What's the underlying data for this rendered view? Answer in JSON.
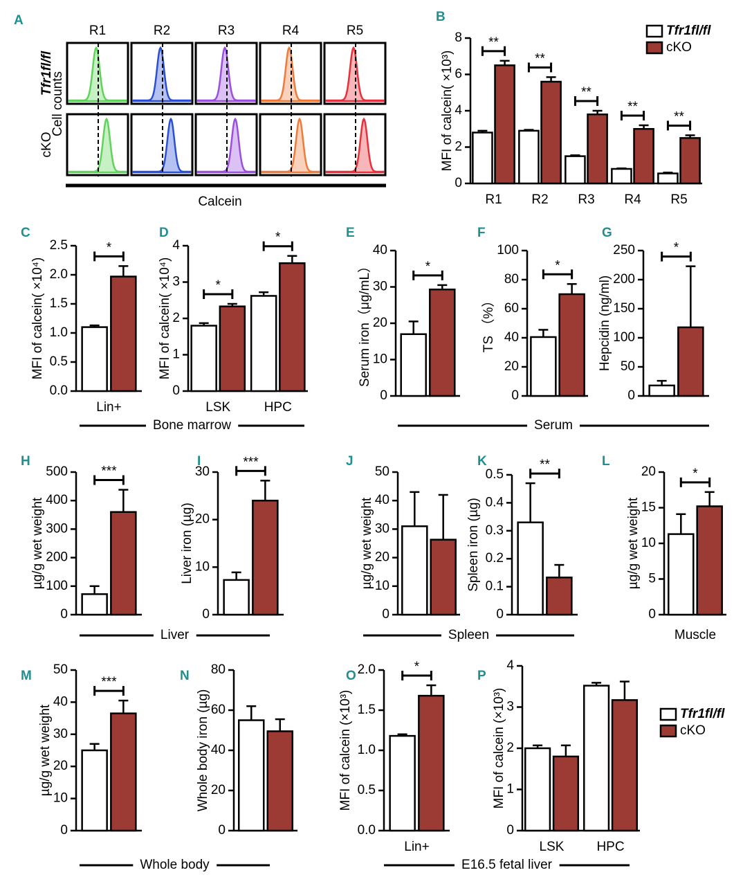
{
  "chart_data": [
    {
      "type": "histogram-grid",
      "letter": "A",
      "columns": [
        "R1",
        "R2",
        "R3",
        "R4",
        "R5"
      ],
      "rows": [
        "Tfr1fl/fl",
        "cKO"
      ],
      "row_colors": [
        "#000000",
        "#9b3b33"
      ],
      "ylabel": "Cell counts",
      "xlabel": "Calcein",
      "colors": [
        "#5fd35a",
        "#2a4fd6",
        "#9b4fe0",
        "#f07a3a",
        "#e8303a"
      ]
    },
    {
      "type": "bar",
      "letter": "B",
      "categories": [
        "R1",
        "R2",
        "R3",
        "R4",
        "R5"
      ],
      "ylabel": "MFI of calcein( ×10³)",
      "ylim": [
        0,
        8
      ],
      "yticks": [
        0,
        2,
        4,
        6,
        8
      ],
      "legend": "upper right",
      "series": [
        {
          "name": "Tfr1fl/fl",
          "color": "#ffffff",
          "values": [
            2.8,
            2.9,
            1.5,
            0.8,
            0.55
          ],
          "errors": [
            0.1,
            0.05,
            0.05,
            0.03,
            0.05
          ]
        },
        {
          "name": "cKO",
          "color": "#9b3b33",
          "values": [
            6.5,
            5.6,
            3.8,
            3.0,
            2.5
          ],
          "errors": [
            0.25,
            0.25,
            0.2,
            0.2,
            0.15
          ]
        }
      ],
      "significance": [
        "**",
        "**",
        "**",
        "**",
        "**"
      ]
    },
    {
      "type": "bar",
      "letter": "C",
      "categories": [
        "Lin+"
      ],
      "ylabel": "MFI of calcein( ×10⁴)",
      "ylim": [
        0,
        2.5
      ],
      "yticks": [
        {
          "value": 0,
          "label": "0.0"
        },
        0.5,
        {
          "value": 1,
          "label": "1.0"
        },
        1.5,
        {
          "value": 2,
          "label": "2.0"
        },
        2.5
      ],
      "series": [
        {
          "color": "#ffffff",
          "values": [
            1.1
          ],
          "errors": [
            0.03
          ]
        },
        {
          "color": "#9b3b33",
          "values": [
            1.97
          ],
          "errors": [
            0.18
          ]
        }
      ],
      "significance": [
        "*"
      ]
    },
    {
      "type": "bar",
      "letter": "D",
      "categories": [
        "LSK",
        "HPC"
      ],
      "ylabel": "MFI of calcein( ×10⁴)",
      "ylim": [
        0,
        4
      ],
      "yticks": [
        0,
        1,
        2,
        3,
        4
      ],
      "series": [
        {
          "color": "#ffffff",
          "values": [
            1.8,
            2.62
          ],
          "errors": [
            0.07,
            0.1
          ]
        },
        {
          "color": "#9b3b33",
          "values": [
            2.33,
            3.52
          ],
          "errors": [
            0.07,
            0.2
          ]
        }
      ],
      "significance": [
        "*",
        "*"
      ]
    },
    {
      "type": "bar",
      "letter": "E",
      "categories": [
        null
      ],
      "ylabel": "Serum iron（μg/mL）",
      "ylim": [
        0,
        40
      ],
      "yticks": [
        0,
        10,
        20,
        30,
        40
      ],
      "series": [
        {
          "color": "#ffffff",
          "values": [
            17
          ],
          "errors": [
            3.5
          ]
        },
        {
          "color": "#9b3b33",
          "values": [
            29.3
          ],
          "errors": [
            1.2
          ]
        }
      ],
      "significance": [
        "*"
      ]
    },
    {
      "type": "bar",
      "letter": "F",
      "categories": [
        null
      ],
      "ylabel": "TS （%）",
      "ylim": [
        0,
        100
      ],
      "yticks": [
        0,
        20,
        40,
        60,
        80,
        100
      ],
      "series": [
        {
          "color": "#ffffff",
          "values": [
            40.5
          ],
          "errors": [
            5
          ]
        },
        {
          "color": "#9b3b33",
          "values": [
            70
          ],
          "errors": [
            7
          ]
        }
      ],
      "significance": [
        "*"
      ]
    },
    {
      "type": "bar",
      "letter": "G",
      "categories": [
        null
      ],
      "ylabel": "Hepcidin (ng/ml)",
      "ylim": [
        0,
        250
      ],
      "yticks": [
        0,
        50,
        100,
        150,
        200,
        250
      ],
      "series": [
        {
          "color": "#ffffff",
          "values": [
            18
          ],
          "errors": [
            8
          ]
        },
        {
          "color": "#9b3b33",
          "values": [
            118
          ],
          "errors": [
            105
          ]
        }
      ],
      "significance": [
        "*"
      ]
    },
    {
      "type": "bar",
      "letter": "H",
      "categories": [
        null
      ],
      "ylabel": "µg/g wet weight",
      "ylim": [
        0,
        500
      ],
      "yticks": [
        0,
        100,
        200,
        300,
        400,
        500
      ],
      "series": [
        {
          "color": "#ffffff",
          "values": [
            72
          ],
          "errors": [
            28
          ]
        },
        {
          "color": "#9b3b33",
          "values": [
            360
          ],
          "errors": [
            78
          ]
        }
      ],
      "significance": [
        "***"
      ]
    },
    {
      "type": "bar",
      "letter": "I",
      "categories": [
        null
      ],
      "ylabel": "Liver iron (µg)",
      "ylim": [
        0,
        30
      ],
      "yticks": [
        0,
        10,
        20,
        30
      ],
      "series": [
        {
          "color": "#ffffff",
          "values": [
            7.3
          ],
          "errors": [
            1.6
          ]
        },
        {
          "color": "#9b3b33",
          "values": [
            24
          ],
          "errors": [
            4.2
          ]
        }
      ],
      "significance": [
        "***"
      ]
    },
    {
      "type": "bar",
      "letter": "J",
      "categories": [
        null
      ],
      "ylabel": "µg/g wet weight",
      "ylim": [
        0,
        50
      ],
      "yticks": [
        0,
        10,
        20,
        30,
        40,
        50
      ],
      "series": [
        {
          "color": "#ffffff",
          "values": [
            31
          ],
          "errors": [
            12
          ]
        },
        {
          "color": "#9b3b33",
          "values": [
            26.3
          ],
          "errors": [
            15.7
          ]
        }
      ]
    },
    {
      "type": "bar",
      "letter": "K",
      "categories": [
        null
      ],
      "ylabel": "Spleen iron (µg)",
      "ylim": [
        0,
        0.5
      ],
      "yticks": [
        0,
        0.1,
        0.2,
        0.3,
        0.4,
        0.5
      ],
      "series": [
        {
          "color": "#ffffff",
          "values": [
            0.33
          ],
          "errors": [
            0.14
          ]
        },
        {
          "color": "#9b3b33",
          "values": [
            0.133
          ],
          "errors": [
            0.045
          ]
        }
      ],
      "significance": [
        "**"
      ]
    },
    {
      "type": "bar",
      "letter": "L",
      "categories": [
        null
      ],
      "ylabel": "µg/g wet weight",
      "ylim": [
        0,
        20
      ],
      "yticks": [
        0,
        5,
        10,
        15,
        20
      ],
      "series": [
        {
          "color": "#ffffff",
          "values": [
            11.3
          ],
          "errors": [
            2.8
          ]
        },
        {
          "color": "#9b3b33",
          "values": [
            15.2
          ],
          "errors": [
            2
          ]
        }
      ],
      "significance": [
        "*"
      ]
    },
    {
      "type": "bar",
      "letter": "M",
      "categories": [
        null
      ],
      "ylabel": "µg/g wet weight",
      "ylim": [
        0,
        50
      ],
      "yticks": [
        0,
        10,
        20,
        30,
        40,
        50
      ],
      "series": [
        {
          "color": "#ffffff",
          "values": [
            25
          ],
          "errors": [
            2
          ]
        },
        {
          "color": "#9b3b33",
          "values": [
            36.5
          ],
          "errors": [
            4
          ]
        }
      ],
      "significance": [
        "***"
      ]
    },
    {
      "type": "bar",
      "letter": "N",
      "categories": [
        null
      ],
      "ylabel": "Whole body iron (µg)",
      "ylim": [
        0,
        80
      ],
      "yticks": [
        0,
        20,
        40,
        60,
        80
      ],
      "series": [
        {
          "color": "#ffffff",
          "values": [
            55
          ],
          "errors": [
            7
          ]
        },
        {
          "color": "#9b3b33",
          "values": [
            49.5
          ],
          "errors": [
            6
          ]
        }
      ]
    },
    {
      "type": "bar",
      "letter": "O",
      "categories": [
        "Lin+"
      ],
      "ylabel": "MFI of calcein (×10³)",
      "ylim": [
        0,
        2
      ],
      "yticks": [
        {
          "value": 0,
          "label": "0.0"
        },
        0.5,
        {
          "value": 1,
          "label": "1.0"
        },
        1.5,
        {
          "value": 2,
          "label": "2.0"
        }
      ],
      "series": [
        {
          "color": "#ffffff",
          "values": [
            1.18
          ],
          "errors": [
            0.02
          ]
        },
        {
          "color": "#9b3b33",
          "values": [
            1.68
          ],
          "errors": [
            0.13
          ]
        }
      ],
      "significance": [
        "*"
      ]
    },
    {
      "type": "bar",
      "letter": "P",
      "categories": [
        "LSK",
        "HPC"
      ],
      "ylabel": "MFI of calcein (×10³)",
      "ylim": [
        0,
        4
      ],
      "yticks": [
        0,
        1,
        2,
        3,
        4
      ],
      "legend": "right",
      "series": [
        {
          "name": "Tfr1fl/fl",
          "color": "#ffffff",
          "values": [
            2.0,
            3.52
          ],
          "errors": [
            0.07,
            0.07
          ]
        },
        {
          "name": "cKO",
          "color": "#9b3b33",
          "values": [
            1.8,
            3.17
          ],
          "errors": [
            0.27,
            0.45
          ]
        }
      ]
    }
  ],
  "groups": [
    {
      "label": "Bone marrow"
    },
    {
      "label": "Serum"
    },
    {
      "label": "Liver"
    },
    {
      "label": "Spleen"
    },
    {
      "label": "Muscle"
    },
    {
      "label": "Whole body"
    },
    {
      "label": "E16.5 fetal liver"
    }
  ]
}
